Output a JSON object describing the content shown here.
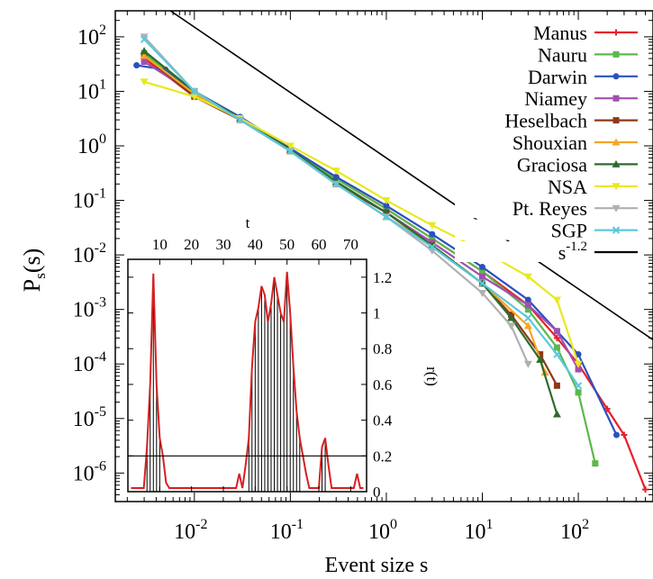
{
  "chart_data": [
    {
      "type": "line",
      "scale": "log-log",
      "xlabel": "Event size s",
      "ylabel": "P",
      "ylabel_sub": "s",
      "ylabel_suffix": "(s)",
      "xlim": [
        0.0015,
        600
      ],
      "ylim": [
        3e-07,
        300
      ],
      "x_ticks": [
        {
          "value": 0.01,
          "base": "10",
          "exp": "-2"
        },
        {
          "value": 0.1,
          "base": "10",
          "exp": "-1"
        },
        {
          "value": 1,
          "base": "10",
          "exp": "0"
        },
        {
          "value": 10,
          "base": "10",
          "exp": "1"
        },
        {
          "value": 100,
          "base": "10",
          "exp": "2"
        }
      ],
      "y_ticks": [
        {
          "value": 1e-06,
          "base": "10",
          "exp": "-6"
        },
        {
          "value": 1e-05,
          "base": "10",
          "exp": "-5"
        },
        {
          "value": 0.0001,
          "base": "10",
          "exp": "-4"
        },
        {
          "value": 0.001,
          "base": "10",
          "exp": "-3"
        },
        {
          "value": 0.01,
          "base": "10",
          "exp": "-2"
        },
        {
          "value": 0.1,
          "base": "10",
          "exp": "-1"
        },
        {
          "value": 1,
          "base": "10",
          "exp": "0"
        },
        {
          "value": 10,
          "base": "10",
          "exp": "1"
        },
        {
          "value": 100,
          "base": "10",
          "exp": "2"
        }
      ],
      "legend_position": "top-right",
      "series": [
        {
          "name": "Manus",
          "color": "#e8202a",
          "marker": "plus",
          "x": [
            0.003,
            0.01,
            0.03,
            0.1,
            0.3,
            1,
            3,
            10,
            30,
            60,
            100,
            200,
            300,
            500
          ],
          "y": [
            40,
            8,
            3,
            0.8,
            0.25,
            0.07,
            0.02,
            0.005,
            0.0012,
            0.0003,
            0.0001,
            1.5e-05,
            5e-06,
            5e-07
          ]
        },
        {
          "name": "Nauru",
          "color": "#5cb84c",
          "marker": "square",
          "x": [
            0.003,
            0.01,
            0.03,
            0.1,
            0.3,
            1,
            3,
            10,
            30,
            60,
            100,
            150
          ],
          "y": [
            50,
            9,
            3.2,
            0.85,
            0.25,
            0.07,
            0.02,
            0.005,
            0.001,
            0.0002,
            3e-05,
            1.5e-06
          ]
        },
        {
          "name": "Darwin",
          "color": "#2a52be",
          "marker": "circle",
          "x": [
            0.0025,
            0.005,
            0.01,
            0.03,
            0.1,
            0.3,
            1,
            3,
            10,
            30,
            60,
            100,
            250
          ],
          "y": [
            30,
            25,
            10,
            3.4,
            0.9,
            0.27,
            0.08,
            0.024,
            0.006,
            0.0015,
            0.0004,
            0.00015,
            5e-06
          ]
        },
        {
          "name": "Niamey",
          "color": "#a050b0",
          "marker": "square",
          "x": [
            0.003,
            0.01,
            0.03,
            0.1,
            0.3,
            1,
            3,
            10,
            30,
            60,
            100
          ],
          "y": [
            35,
            9,
            3,
            0.8,
            0.2,
            0.06,
            0.017,
            0.004,
            0.0012,
            0.0004,
            8e-05
          ]
        },
        {
          "name": "Heselbach",
          "color": "#8b3a1a",
          "marker": "square",
          "x": [
            0.003,
            0.01,
            0.03,
            0.1,
            0.3,
            1,
            3,
            10,
            20,
            40,
            60
          ],
          "y": [
            45,
            8,
            3,
            0.8,
            0.2,
            0.06,
            0.015,
            0.003,
            0.0008,
            0.00015,
            4e-05
          ]
        },
        {
          "name": "Shouxian",
          "color": "#f5a623",
          "marker": "triangle",
          "x": [
            0.003,
            0.01,
            0.03,
            0.1,
            0.3,
            1,
            3,
            10,
            30,
            45
          ],
          "y": [
            45,
            9,
            3,
            0.8,
            0.2,
            0.05,
            0.015,
            0.003,
            0.0005,
            7e-05
          ]
        },
        {
          "name": "Graciosa",
          "color": "#2e6b2e",
          "marker": "triangle",
          "x": [
            0.003,
            0.01,
            0.03,
            0.1,
            0.3,
            1,
            3,
            10,
            20,
            40,
            60
          ],
          "y": [
            55,
            10,
            3.2,
            0.85,
            0.22,
            0.06,
            0.015,
            0.003,
            0.0007,
            0.00012,
            1.2e-05
          ]
        },
        {
          "name": "NSA",
          "color": "#e8e820",
          "marker": "triangle-down",
          "x": [
            0.003,
            0.01,
            0.03,
            0.1,
            0.3,
            1,
            3,
            10,
            30,
            60,
            100
          ],
          "y": [
            15,
            8,
            3.2,
            1,
            0.35,
            0.1,
            0.035,
            0.012,
            0.004,
            0.0015,
            0.0001
          ]
        },
        {
          "name": "Pt. Reyes",
          "color": "#b0b0b0",
          "marker": "triangle-down",
          "x": [
            0.003,
            0.01,
            0.03,
            0.1,
            0.3,
            1,
            3,
            10,
            20,
            30
          ],
          "y": [
            100,
            10,
            3,
            0.8,
            0.2,
            0.05,
            0.012,
            0.002,
            0.0005,
            0.0001
          ]
        },
        {
          "name": "SGP",
          "color": "#5bc8dc",
          "marker": "cross",
          "x": [
            0.003,
            0.01,
            0.03,
            0.1,
            0.3,
            1,
            3,
            10,
            30,
            60,
            100
          ],
          "y": [
            90,
            10,
            3,
            0.8,
            0.2,
            0.05,
            0.014,
            0.003,
            0.0007,
            0.00015,
            4e-05
          ]
        }
      ],
      "reference_line": {
        "name": "s",
        "exponent_label": "-1.2",
        "exponent": -1.2,
        "coefficient": 0.6,
        "color": "#000000"
      }
    },
    {
      "type": "bar",
      "title": "t",
      "ylabel": "r(t)",
      "xlim": [
        0,
        75
      ],
      "ylim": [
        0,
        1.3
      ],
      "x_ticks": [
        10,
        20,
        30,
        40,
        50,
        60,
        70
      ],
      "y_ticks": [
        0,
        0.2,
        0.4,
        0.6,
        0.8,
        1,
        1.2
      ],
      "threshold": 0.2,
      "bar_color": "#000000",
      "line_color": "#d62020",
      "t": [
        1,
        2,
        3,
        4,
        5,
        6,
        7,
        8,
        9,
        10,
        11,
        12,
        13,
        14,
        15,
        16,
        17,
        18,
        19,
        20,
        21,
        22,
        23,
        24,
        25,
        26,
        27,
        28,
        29,
        30,
        31,
        32,
        33,
        34,
        35,
        36,
        37,
        38,
        39,
        40,
        41,
        42,
        43,
        44,
        45,
        46,
        47,
        48,
        49,
        50,
        51,
        52,
        53,
        54,
        55,
        56,
        57,
        58,
        59,
        60,
        61,
        62,
        63,
        64,
        65,
        66,
        67,
        68,
        69,
        70,
        71,
        72,
        73,
        74
      ],
      "r": [
        0.02,
        0.02,
        0.02,
        0.02,
        0.02,
        0.25,
        0.6,
        1.22,
        0.6,
        0.3,
        0.2,
        0.05,
        0.02,
        0.02,
        0.02,
        0.02,
        0.02,
        0.02,
        0.02,
        0.02,
        0.02,
        0.02,
        0.02,
        0.02,
        0.02,
        0.02,
        0.02,
        0.02,
        0.02,
        0.02,
        0.02,
        0.02,
        0.02,
        0.02,
        0.1,
        0.02,
        0.15,
        0.3,
        0.7,
        0.95,
        1.03,
        1.15,
        1.1,
        0.95,
        1.05,
        1.2,
        1.1,
        1,
        0.95,
        1.23,
        1,
        0.7,
        0.45,
        0.3,
        0.2,
        0.1,
        0.02,
        0.02,
        0.02,
        0.02,
        0.25,
        0.3,
        0.15,
        0.02,
        0.02,
        0.02,
        0.02,
        0.02,
        0.02,
        0.02,
        0.02,
        0.1,
        0.02,
        0.02
      ]
    }
  ]
}
